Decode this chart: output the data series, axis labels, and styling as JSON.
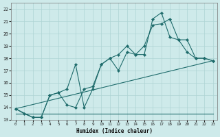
{
  "xlabel": "Humidex (Indice chaleur)",
  "xlim": [
    -0.5,
    23.5
  ],
  "ylim": [
    13,
    22.5
  ],
  "xticks": [
    0,
    1,
    2,
    3,
    4,
    5,
    6,
    7,
    8,
    9,
    10,
    11,
    12,
    13,
    14,
    15,
    16,
    17,
    18,
    19,
    20,
    21,
    22,
    23
  ],
  "yticks": [
    13,
    14,
    15,
    16,
    17,
    18,
    19,
    20,
    21,
    22
  ],
  "bg_color": "#ceeaea",
  "line_color": "#1e6b6b",
  "grid_color": "#aed4d4",
  "line1_x": [
    0,
    1,
    2,
    3,
    4,
    5,
    6,
    7,
    8,
    9,
    10,
    11,
    12,
    13,
    14,
    15,
    16,
    17,
    18,
    19,
    20,
    21,
    22,
    23
  ],
  "line1_y": [
    13.9,
    13.5,
    13.2,
    13.2,
    15.0,
    15.2,
    14.2,
    14.0,
    15.5,
    15.7,
    17.5,
    18.0,
    17.0,
    18.5,
    18.3,
    19.0,
    20.7,
    20.8,
    21.2,
    19.5,
    19.5,
    18.0,
    18.0,
    17.8
  ],
  "line2_x": [
    0,
    2,
    3,
    4,
    5,
    6,
    7,
    8,
    9,
    10,
    11,
    12,
    13,
    14,
    15,
    16,
    17,
    18,
    19,
    20,
    21,
    22,
    23
  ],
  "line2_y": [
    13.9,
    13.2,
    13.2,
    15.0,
    15.2,
    15.5,
    17.5,
    14.0,
    15.5,
    17.5,
    18.0,
    18.3,
    19.0,
    18.3,
    18.3,
    21.2,
    21.7,
    19.7,
    19.5,
    18.5,
    18.0,
    18.0,
    17.8
  ],
  "line3_x": [
    0,
    23
  ],
  "line3_y": [
    13.9,
    17.8
  ],
  "line4_x": [
    0,
    23
  ],
  "line4_y": [
    13.5,
    13.5
  ]
}
